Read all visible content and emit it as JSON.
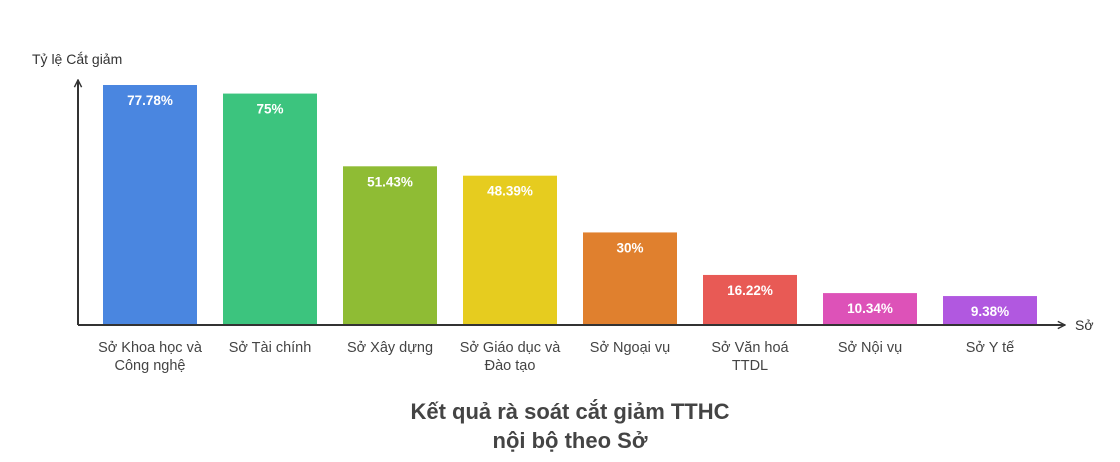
{
  "chart_data": {
    "type": "bar",
    "title": [
      "Kết quả rà soát cắt giảm TTHC",
      "nội bộ theo Sở"
    ],
    "xlabel": "Sở",
    "ylabel": "Tỷ lệ Cắt giảm",
    "ylim": [
      0,
      85
    ],
    "grid": false,
    "legend": "none",
    "categories": [
      [
        "Sở Khoa học và",
        "Công nghệ"
      ],
      [
        "Sở Tài chính"
      ],
      [
        "Sở Xây dựng"
      ],
      [
        "Sở Giáo dục và",
        "Đào tạo"
      ],
      [
        "Sở Ngoại vụ"
      ],
      [
        "Sở Văn hoá",
        "TTDL"
      ],
      [
        "Sở Nội vụ"
      ],
      [
        "Sở Y tế"
      ]
    ],
    "values": [
      77.78,
      75,
      51.43,
      48.39,
      30,
      16.22,
      10.34,
      9.38
    ],
    "labels": [
      "77.78%",
      "75%",
      "51.43%",
      "48.39%",
      "30%",
      "16.22%",
      "10.34%",
      "9.38%"
    ],
    "colors": [
      "#4a86e0",
      "#3cc47e",
      "#8fbc34",
      "#e6cc1f",
      "#e0802e",
      "#e85a55",
      "#dd52b8",
      "#b158e0"
    ]
  }
}
